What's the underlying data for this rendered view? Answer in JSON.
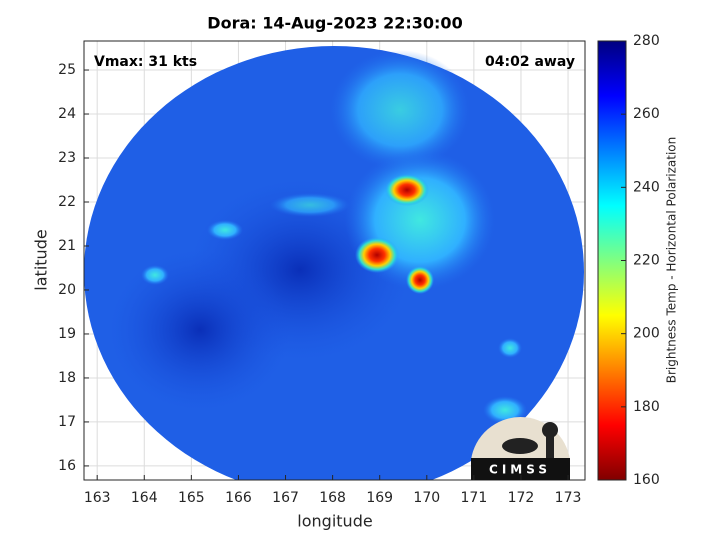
{
  "chart_data": {
    "type": "image",
    "title": "Dora: 14-Aug-2023 22:30:00",
    "annotations": [
      "Vmax: 31 kts",
      "04:02 away"
    ],
    "xlabel": "longitude",
    "ylabel": "latitude",
    "xlim": [
      162.72,
      173.36
    ],
    "xticks": [
      163,
      164,
      165,
      166,
      167,
      168,
      169,
      170,
      171,
      172,
      173
    ],
    "ylim": [
      15.68,
      25.66
    ],
    "yticks": [
      16,
      17,
      18,
      19,
      20,
      21,
      22,
      23,
      24,
      25
    ],
    "grid": true,
    "colorbar": {
      "label": "Brightness Temp - Horizontal Polarization",
      "lim": [
        160,
        280
      ],
      "ticks": [
        160,
        180,
        200,
        220,
        240,
        260,
        280
      ],
      "colormap": [
        "#800000",
        "#ff0000",
        "#ff8000",
        "#ffff00",
        "#80ff80",
        "#00ffff",
        "#0080ff",
        "#0000ff",
        "#000080"
      ]
    },
    "logo": "CIMSS"
  }
}
